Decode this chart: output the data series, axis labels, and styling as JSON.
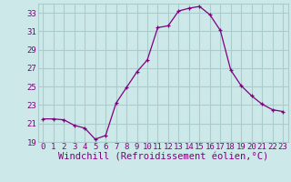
{
  "x": [
    0,
    1,
    2,
    3,
    4,
    5,
    6,
    7,
    8,
    9,
    10,
    11,
    12,
    13,
    14,
    15,
    16,
    17,
    18,
    19,
    20,
    21,
    22,
    23
  ],
  "y": [
    21.5,
    21.5,
    21.4,
    20.8,
    20.5,
    19.3,
    19.7,
    23.2,
    24.9,
    26.6,
    27.9,
    31.4,
    31.6,
    33.2,
    33.5,
    33.7,
    32.8,
    31.1,
    26.8,
    25.1,
    24.0,
    23.1,
    22.5,
    22.3
  ],
  "line_color": "#800080",
  "marker": "+",
  "bg_color": "#cce8e8",
  "grid_color": "#aacccc",
  "xlabel": "Windchill (Refroidissement éolien,°C)",
  "xlabel_color": "#800080",
  "ylim": [
    19,
    34
  ],
  "xlim_min": -0.5,
  "xlim_max": 23.5,
  "yticks": [
    19,
    21,
    23,
    25,
    27,
    29,
    31,
    33
  ],
  "xticks": [
    0,
    1,
    2,
    3,
    4,
    5,
    6,
    7,
    8,
    9,
    10,
    11,
    12,
    13,
    14,
    15,
    16,
    17,
    18,
    19,
    20,
    21,
    22,
    23
  ],
  "tick_color": "#800080",
  "tick_fontsize": 6.5,
  "xlabel_fontsize": 7.5
}
